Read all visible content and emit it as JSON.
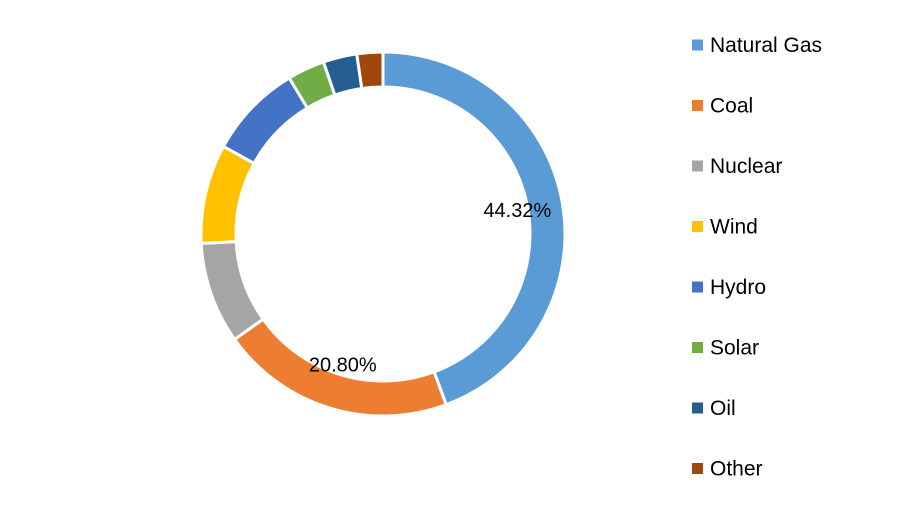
{
  "chart_data": {
    "type": "pie",
    "donut": true,
    "title": "",
    "series": [
      {
        "labels": [
          "Natural Gas",
          "Coal",
          "Nuclear",
          "Wind",
          "Hydro",
          "Solar",
          "Oil",
          "Other"
        ],
        "values": [
          44.32,
          20.8,
          9.0,
          8.8,
          8.4,
          3.3,
          3.0,
          2.3
        ],
        "colors": [
          "#5B9BD5",
          "#ED7D31",
          "#A5A5A5",
          "#FFC000",
          "#4472C4",
          "#70AD47",
          "#255E91",
          "#9E480E"
        ],
        "data_labels": [
          "44.32%",
          "20.80%",
          "",
          "",
          "",
          "",
          "",
          ""
        ]
      }
    ],
    "legend": {
      "position": "right",
      "entries": [
        "Natural Gas",
        "Coal",
        "Nuclear",
        "Wind",
        "Hydro",
        "Solar",
        "Oil",
        "Other"
      ]
    }
  }
}
